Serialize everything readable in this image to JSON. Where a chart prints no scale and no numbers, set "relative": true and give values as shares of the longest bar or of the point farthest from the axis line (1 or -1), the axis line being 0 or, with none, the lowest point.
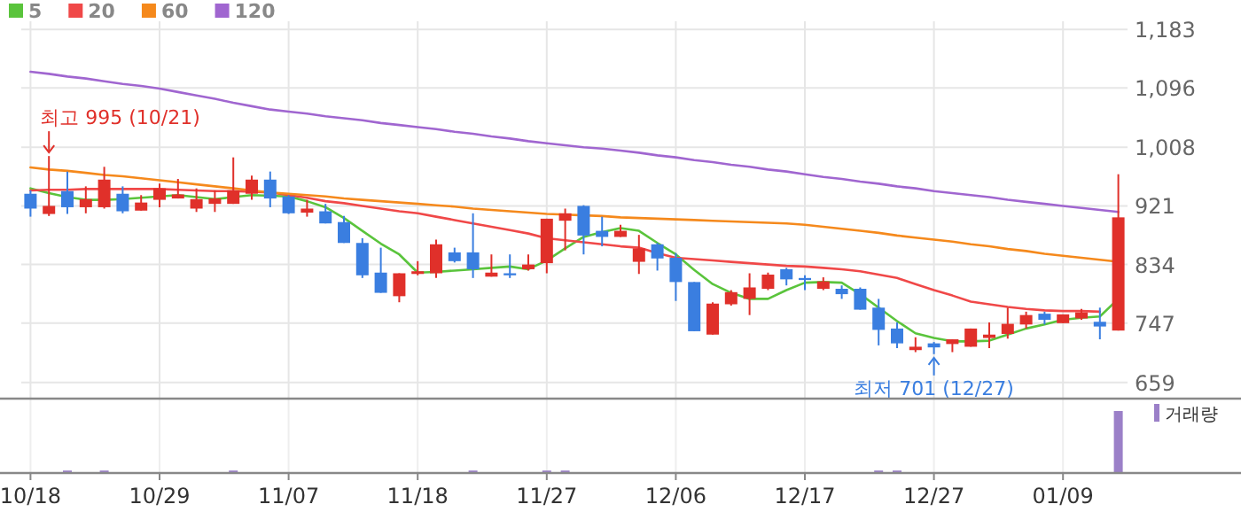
{
  "chart_data": [
    {
      "type": "candlestick",
      "categories": [
        null,
        null,
        null,
        null,
        null,
        null,
        null,
        null,
        null,
        null,
        null,
        null,
        null,
        null,
        null,
        null,
        null,
        null,
        null,
        null,
        null,
        null,
        null,
        null,
        null,
        null,
        null,
        null,
        null,
        null,
        null,
        null,
        null,
        null,
        null,
        null,
        null,
        null,
        null,
        null,
        null,
        null,
        null,
        null,
        null,
        null,
        null,
        null,
        null,
        null,
        null,
        null,
        null,
        null,
        null,
        null,
        null,
        null,
        null,
        null
      ],
      "ohlc": [
        [
          939,
          944,
          905,
          917
        ],
        [
          909,
          995,
          906,
          921
        ],
        [
          943,
          972,
          909,
          919
        ],
        [
          919,
          950,
          910,
          931
        ],
        [
          919,
          979,
          917,
          960
        ],
        [
          939,
          950,
          910,
          913
        ],
        [
          914,
          937,
          914,
          926
        ],
        [
          930,
          954,
          919,
          947
        ],
        [
          932,
          961,
          932,
          938
        ],
        [
          917,
          947,
          912,
          931
        ],
        [
          924,
          944,
          912,
          932
        ],
        [
          924,
          993,
          924,
          944
        ],
        [
          939,
          966,
          930,
          960
        ],
        [
          960,
          972,
          919,
          932
        ],
        [
          935,
          937,
          909,
          910
        ],
        [
          911,
          930,
          905,
          917
        ],
        [
          913,
          924,
          895,
          895
        ],
        [
          897,
          906,
          866,
          866
        ],
        [
          866,
          873,
          814,
          818
        ],
        [
          822,
          859,
          792,
          792
        ],
        [
          787,
          821,
          778,
          821
        ],
        [
          820,
          839,
          818,
          824
        ],
        [
          821,
          871,
          814,
          864
        ],
        [
          852,
          859,
          837,
          839
        ],
        [
          852,
          910,
          814,
          827
        ],
        [
          816,
          849,
          816,
          822
        ],
        [
          821,
          849,
          814,
          818
        ],
        [
          827,
          849,
          825,
          834
        ],
        [
          836,
          902,
          821,
          902
        ],
        [
          899,
          917,
          855,
          910
        ],
        [
          921,
          922,
          849,
          877
        ],
        [
          884,
          905,
          861,
          875
        ],
        [
          875,
          893,
          875,
          884
        ],
        [
          838,
          878,
          820,
          858
        ],
        [
          864,
          866,
          825,
          843
        ],
        [
          844,
          851,
          780,
          808
        ],
        [
          808,
          808,
          735,
          735
        ],
        [
          730,
          778,
          730,
          776
        ],
        [
          775,
          796,
          773,
          793
        ],
        [
          783,
          821,
          759,
          800
        ],
        [
          798,
          822,
          796,
          819
        ],
        [
          827,
          829,
          803,
          812
        ],
        [
          814,
          818,
          796,
          811
        ],
        [
          798,
          815,
          796,
          809
        ],
        [
          798,
          803,
          783,
          790
        ],
        [
          798,
          800,
          767,
          767
        ],
        [
          770,
          783,
          714,
          737
        ],
        [
          739,
          748,
          710,
          717
        ],
        [
          707,
          726,
          704,
          712
        ],
        [
          717,
          719,
          701,
          711
        ],
        [
          716,
          723,
          704,
          723
        ],
        [
          712,
          739,
          712,
          739
        ],
        [
          725,
          748,
          710,
          730
        ],
        [
          731,
          770,
          724,
          746
        ],
        [
          745,
          764,
          739,
          759
        ],
        [
          761,
          764,
          745,
          752
        ],
        [
          747,
          760,
          747,
          760
        ],
        [
          754,
          768,
          752,
          763
        ],
        [
          749,
          770,
          723,
          742
        ],
        [
          736,
          968,
          736,
          904
        ]
      ],
      "colors": [
        "#3a7ee0",
        "#e0302a",
        "#3a7ee0",
        "#e0302a",
        "#e0302a",
        "#3a7ee0",
        "#e0302a",
        "#e0302a",
        "#e0302a",
        "#e0302a",
        "#e0302a",
        "#e0302a",
        "#e0302a",
        "#3a7ee0",
        "#3a7ee0",
        "#e0302a",
        "#3a7ee0",
        "#3a7ee0",
        "#3a7ee0",
        "#3a7ee0",
        "#e0302a",
        "#e0302a",
        "#e0302a",
        "#3a7ee0",
        "#3a7ee0",
        "#e0302a",
        "#3a7ee0",
        "#e0302a",
        "#e0302a",
        "#e0302a",
        "#3a7ee0",
        "#3a7ee0",
        "#e0302a",
        "#e0302a",
        "#3a7ee0",
        "#3a7ee0",
        "#3a7ee0",
        "#e0302a",
        "#e0302a",
        "#e0302a",
        "#e0302a",
        "#3a7ee0",
        "#3a7ee0",
        "#e0302a",
        "#3a7ee0",
        "#3a7ee0",
        "#3a7ee0",
        "#3a7ee0",
        "#e0302a",
        "#3a7ee0",
        "#e0302a",
        "#e0302a",
        "#e0302a",
        "#e0302a",
        "#e0302a",
        "#3a7ee0",
        "#e0302a",
        "#e0302a",
        "#3a7ee0",
        "#e0302a"
      ],
      "series": [
        {
          "name": "5",
          "type": "line",
          "color": "#5ac43c",
          "values": [
            947,
            940,
            934,
            930,
            930,
            931,
            933,
            935,
            937,
            934,
            931,
            934,
            937,
            936,
            935,
            928,
            919,
            903,
            884,
            865,
            849,
            822,
            823,
            825,
            827,
            829,
            831,
            827,
            840,
            858,
            875,
            882,
            888,
            884,
            866,
            849,
            826,
            805,
            792,
            783,
            783,
            796,
            807,
            808,
            807,
            790,
            770,
            750,
            732,
            725,
            720,
            720,
            721,
            730,
            739,
            745,
            752,
            755,
            757,
            783
          ]
        },
        {
          "name": "20",
          "type": "line",
          "color": "#f04848",
          "values": [
            944,
            945,
            945,
            946,
            946,
            946,
            946,
            946,
            945,
            944,
            943,
            943,
            942,
            941,
            937,
            933,
            928,
            925,
            921,
            917,
            913,
            910,
            905,
            900,
            895,
            890,
            885,
            880,
            873,
            870,
            867,
            864,
            861,
            859,
            851,
            844,
            842,
            840,
            838,
            836,
            834,
            832,
            831,
            829,
            827,
            824,
            819,
            814,
            805,
            796,
            788,
            779,
            775,
            771,
            768,
            766,
            765,
            765,
            764,
            null
          ]
        },
        {
          "name": "60",
          "type": "line",
          "color": "#f5891c",
          "values": [
            978,
            975,
            973,
            970,
            967,
            965,
            962,
            959,
            956,
            953,
            950,
            947,
            944,
            941,
            939,
            937,
            935,
            932,
            930,
            928,
            926,
            924,
            922,
            920,
            917,
            915,
            913,
            911,
            909,
            908,
            907,
            906,
            904,
            903,
            902,
            901,
            900,
            899,
            898,
            897,
            896,
            895,
            893,
            890,
            887,
            884,
            881,
            877,
            874,
            871,
            868,
            864,
            861,
            857,
            854,
            850,
            847,
            844,
            841,
            838
          ]
        },
        {
          "name": "120",
          "type": "line",
          "color": "#a066d0",
          "values": [
            1120,
            1117,
            1113,
            1110,
            1106,
            1102,
            1099,
            1095,
            1090,
            1085,
            1080,
            1074,
            1069,
            1064,
            1061,
            1058,
            1054,
            1051,
            1048,
            1044,
            1041,
            1038,
            1035,
            1031,
            1028,
            1024,
            1021,
            1017,
            1014,
            1011,
            1008,
            1006,
            1003,
            1000,
            996,
            993,
            989,
            986,
            982,
            979,
            975,
            972,
            968,
            964,
            961,
            957,
            954,
            950,
            947,
            943,
            940,
            937,
            934,
            930,
            927,
            924,
            921,
            918,
            915,
            912
          ]
        }
      ],
      "ylim": [
        635,
        1195
      ],
      "yticks": [
        659,
        747,
        834,
        921,
        {
          "value": 1008,
          "label": "1,008"
        },
        {
          "value": 1096,
          "label": "1,096"
        },
        {
          "value": 1183,
          "label": "1,183"
        }
      ],
      "tick_labels": "y",
      "grid": true,
      "legend": "top left",
      "annotations": [
        "최고 995 (10/21)",
        "최저 701 (12/27)"
      ]
    },
    {
      "type": "bar",
      "relative": true,
      "categories": [
        "10/18",
        null,
        null,
        null,
        null,
        null,
        null,
        "10/29",
        null,
        null,
        null,
        null,
        null,
        null,
        "11/07",
        null,
        null,
        null,
        null,
        null,
        null,
        "11/18",
        null,
        null,
        null,
        null,
        null,
        null,
        "11/27",
        null,
        null,
        null,
        null,
        null,
        null,
        "12/06",
        null,
        null,
        null,
        null,
        null,
        null,
        "12/17",
        null,
        null,
        null,
        null,
        null,
        null,
        "12/27",
        null,
        null,
        null,
        null,
        null,
        null,
        "01/09",
        null,
        null,
        null
      ],
      "series": [
        {
          "name": "거래량",
          "color": "#9b80c8",
          "values": [
            null,
            null,
            0.04,
            null,
            0.04,
            null,
            null,
            null,
            null,
            null,
            null,
            0.04,
            null,
            null,
            null,
            null,
            null,
            null,
            null,
            null,
            null,
            null,
            null,
            null,
            0.04,
            null,
            null,
            null,
            0.04,
            0.04,
            null,
            null,
            null,
            null,
            null,
            null,
            null,
            null,
            null,
            null,
            null,
            null,
            null,
            null,
            null,
            null,
            0.04,
            0.04,
            null,
            null,
            null,
            null,
            null,
            null,
            null,
            null,
            null,
            null,
            null,
            1
          ]
        }
      ],
      "tick_labels": "x",
      "grid": "x",
      "legend": "top right"
    }
  ]
}
